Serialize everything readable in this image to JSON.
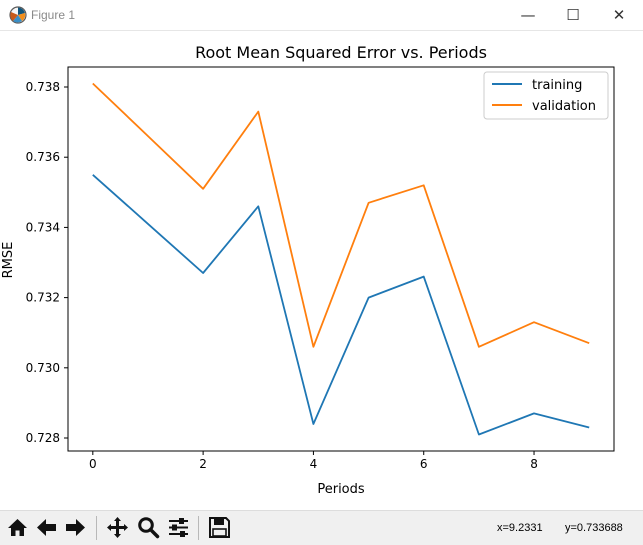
{
  "window": {
    "title": "Figure 1",
    "controls": {
      "minimize": "—",
      "maximize": "☐",
      "close": "✕"
    }
  },
  "toolbar": {
    "tools": [
      {
        "name": "home-button",
        "icon": "home-icon"
      },
      {
        "name": "back-button",
        "icon": "arrow-left-icon"
      },
      {
        "name": "forward-button",
        "icon": "arrow-right-icon"
      },
      {
        "name": "pan-button",
        "icon": "move-icon"
      },
      {
        "name": "zoom-button",
        "icon": "magnifier-icon"
      },
      {
        "name": "configure-subplots-button",
        "icon": "sliders-icon"
      },
      {
        "name": "save-button",
        "icon": "floppy-disk-icon"
      }
    ],
    "x_readout": "x=9.2331",
    "y_readout": "y=0.733688"
  },
  "chart_data": {
    "type": "line",
    "title": "Root Mean Squared Error vs. Periods",
    "xlabel": "Periods",
    "ylabel": "RMSE",
    "x": [
      0,
      1,
      2,
      3,
      4,
      5,
      6,
      7,
      8,
      9
    ],
    "xlim": [
      -0.45,
      9.45
    ],
    "ylim": [
      0.72763,
      0.73857
    ],
    "xticks": [
      0,
      2,
      4,
      6,
      8
    ],
    "xtick_labels": [
      "0",
      "2",
      "4",
      "6",
      "8"
    ],
    "yticks": [
      0.728,
      0.73,
      0.732,
      0.734,
      0.736,
      0.738
    ],
    "ytick_labels": [
      "0.728",
      "0.730",
      "0.732",
      "0.734",
      "0.736",
      "0.738"
    ],
    "legend_position": "upper right",
    "grid": false,
    "series": [
      {
        "name": "training",
        "color": "#1f77b4",
        "values": [
          0.7355,
          0.7341,
          0.7327,
          0.7346,
          0.7284,
          0.732,
          0.7326,
          0.7281,
          0.7287,
          0.7283
        ]
      },
      {
        "name": "validation",
        "color": "#ff7f0e",
        "values": [
          0.7381,
          0.7366,
          0.7351,
          0.7373,
          0.7306,
          0.7347,
          0.7352,
          0.7306,
          0.7313,
          0.7307
        ]
      }
    ]
  }
}
